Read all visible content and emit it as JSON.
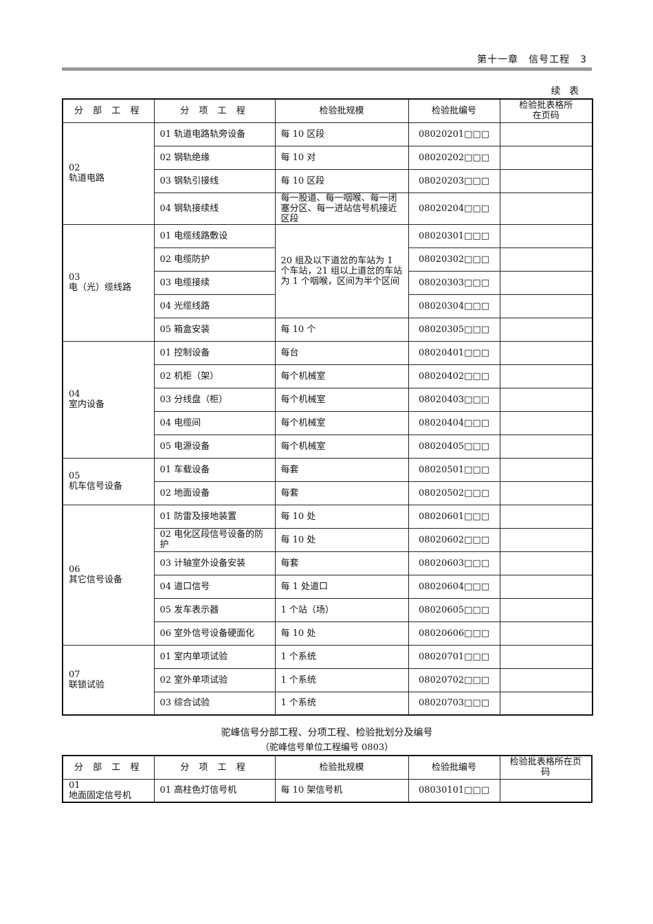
{
  "header": {
    "chapter": "第十一章　信号工程　3"
  },
  "continued_label": "续 表",
  "columns": [
    "分 部 工 程",
    "分 项 工 程",
    "检验批规模",
    "检验批编号",
    "检验批表格所在页码"
  ],
  "table1": {
    "groups": [
      {
        "code": "02",
        "name": "轨道电路",
        "items": [
          {
            "sub": "01 轨道电路轨旁设备",
            "scale": "每 10 区段",
            "batch": "08020201□□□"
          },
          {
            "sub": "02 钢轨绝缘",
            "scale": "每 10 对",
            "batch": "08020202□□□"
          },
          {
            "sub": "03 钢轨引接线",
            "scale": "每 10 区段",
            "batch": "08020203□□□"
          },
          {
            "sub": "04 钢轨接续线",
            "scale": "每一股道、每一咽喉、每一闭塞分区、每一进站信号机接近区段",
            "batch": "08020204□□□"
          }
        ]
      },
      {
        "code": "03",
        "name": "电（光）缆线路",
        "items": [
          {
            "sub": "01 电缆线路敷设",
            "scale": "20 组及以下道岔的车站为 1 个车站，21 组以上道岔的车站为 1 个咽喉，区间为半个区间",
            "scale_rows": 4,
            "batch": "08020301□□□"
          },
          {
            "sub": "02 电缆防护",
            "batch": "08020302□□□"
          },
          {
            "sub": "03 电缆接续",
            "batch": "08020303□□□"
          },
          {
            "sub": "04 光缆线路",
            "batch": "08020304□□□"
          },
          {
            "sub": "05 箱盒安装",
            "scale": "每 10 个",
            "batch": "08020305□□□"
          }
        ]
      },
      {
        "code": "04",
        "name": "室内设备",
        "items": [
          {
            "sub": "01 控制设备",
            "scale": "每台",
            "batch": "08020401□□□"
          },
          {
            "sub": "02 机柜（架）",
            "scale": "每个机械室",
            "batch": "08020402□□□"
          },
          {
            "sub": "03 分线盘（柜）",
            "scale": "每个机械室",
            "batch": "08020403□□□"
          },
          {
            "sub": "04 电缆间",
            "scale": "每个机械室",
            "batch": "08020404□□□"
          },
          {
            "sub": "05 电源设备",
            "scale": "每个机械室",
            "batch": "08020405□□□"
          }
        ]
      },
      {
        "code": "05",
        "name": "机车信号设备",
        "items": [
          {
            "sub": "01 车载设备",
            "scale": "每套",
            "batch": "08020501□□□"
          },
          {
            "sub": "02 地面设备",
            "scale": "每套",
            "batch": "08020502□□□"
          }
        ]
      },
      {
        "code": "06",
        "name": "其它信号设备",
        "items": [
          {
            "sub": "01 防雷及接地装置",
            "scale": "每 10 处",
            "batch": "08020601□□□"
          },
          {
            "sub": "02 电化区段信号设备的防护",
            "scale": "每 10 处",
            "batch": "08020602□□□"
          },
          {
            "sub": "03 计轴室外设备安装",
            "scale": "每套",
            "batch": "08020603□□□"
          },
          {
            "sub": "04 道口信号",
            "scale": "每 1 处道口",
            "batch": "08020604□□□"
          },
          {
            "sub": "05 发车表示器",
            "scale": "1 个站（场）",
            "batch": "08020605□□□"
          },
          {
            "sub": "06 室外信号设备硬面化",
            "scale": "每 10 处",
            "batch": "08020606□□□"
          }
        ]
      },
      {
        "code": "07",
        "name": "联锁试验",
        "items": [
          {
            "sub": "01 室内单项试验",
            "scale": "1 个系统",
            "batch": "08020701□□□"
          },
          {
            "sub": "02 室外单项试验",
            "scale": "1 个系统",
            "batch": "08020702□□□"
          },
          {
            "sub": "03 综合试验",
            "scale": "1 个系统",
            "batch": "08020703□□□"
          }
        ]
      }
    ]
  },
  "section2": {
    "title": "驼峰信号分部工程、分项工程、检验批划分及编号",
    "subtitle": "（驼峰信号单位工程编号 0803）",
    "rows": [
      {
        "code": "01",
        "name": "地面固定信号机",
        "sub": "01 高柱色灯信号机",
        "scale": "每 10 架信号机",
        "batch": "08030101□□□",
        "page": ""
      }
    ]
  }
}
